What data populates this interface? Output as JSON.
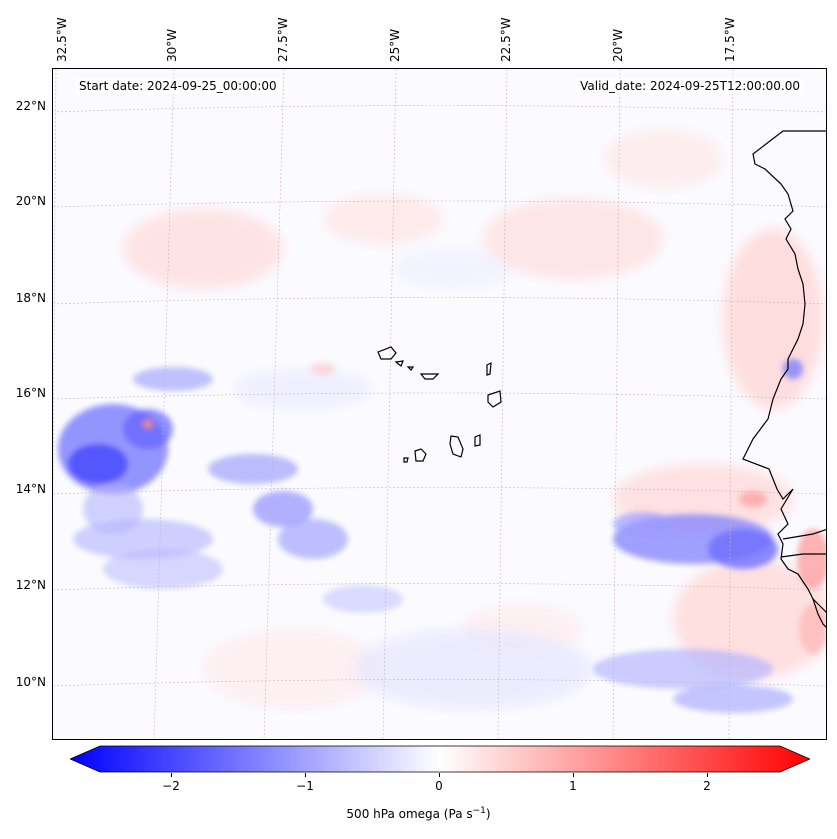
{
  "map": {
    "start_label": "Start date: 2024-09-25_00:00:00",
    "valid_label": "Valid_date: 2024-09-25T12:00:00.00",
    "lon_labels": [
      "32.5°W",
      "30°W",
      "27.5°W",
      "25°W",
      "22.5°W",
      "20°W",
      "17.5°W"
    ],
    "lat_labels": [
      "22°N",
      "20°N",
      "18°N",
      "16°N",
      "14°N",
      "12°N",
      "10°N"
    ],
    "colormap": "bwr",
    "colors": {
      "negative": "#0000ff",
      "zero": "#ffffff",
      "positive": "#ff0000",
      "coast": "#000000",
      "grid": "#c8b4b4"
    }
  },
  "colorbar": {
    "tick_labels": [
      "−2",
      "−1",
      "0",
      "1",
      "2"
    ],
    "label_text": "500 hPa omega (Pa s",
    "label_exp": "−1",
    "label_close": ")",
    "range": [
      -2.7,
      2.7
    ]
  }
}
